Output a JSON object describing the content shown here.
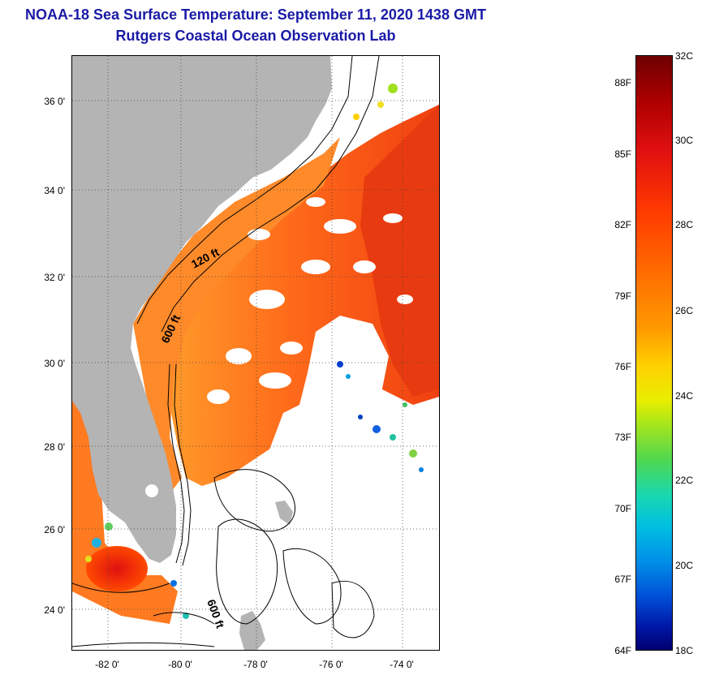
{
  "header": {
    "title": "NOAA-18 Sea Surface Temperature:  September 11, 2020 1438 GMT",
    "subtitle": "Rutgers Coastal Ocean Observation Lab"
  },
  "map": {
    "lat_ticks": [
      "36 0'",
      "34 0'",
      "32 0'",
      "30 0'",
      "28 0'",
      "26 0'",
      "24 0'"
    ],
    "lon_ticks": [
      "-82 0'",
      "-80 0'",
      "-78 0'",
      "-76 0'",
      "-74 0'"
    ],
    "contour_labels": [
      "120 ft",
      "600 ft",
      "600 ft"
    ],
    "colors": {
      "land": "#b4b4b4",
      "ocean_warm": "#ff6a1a",
      "ocean_hot": "#f04010",
      "cloud": "#ffffff"
    }
  },
  "colorbar": {
    "fahrenheit": [
      "88F",
      "85F",
      "82F",
      "79F",
      "76F",
      "73F",
      "70F",
      "67F",
      "64F"
    ],
    "celsius": [
      "32C",
      "30C",
      "28C",
      "26C",
      "24C",
      "22C",
      "20C",
      "18C"
    ]
  }
}
